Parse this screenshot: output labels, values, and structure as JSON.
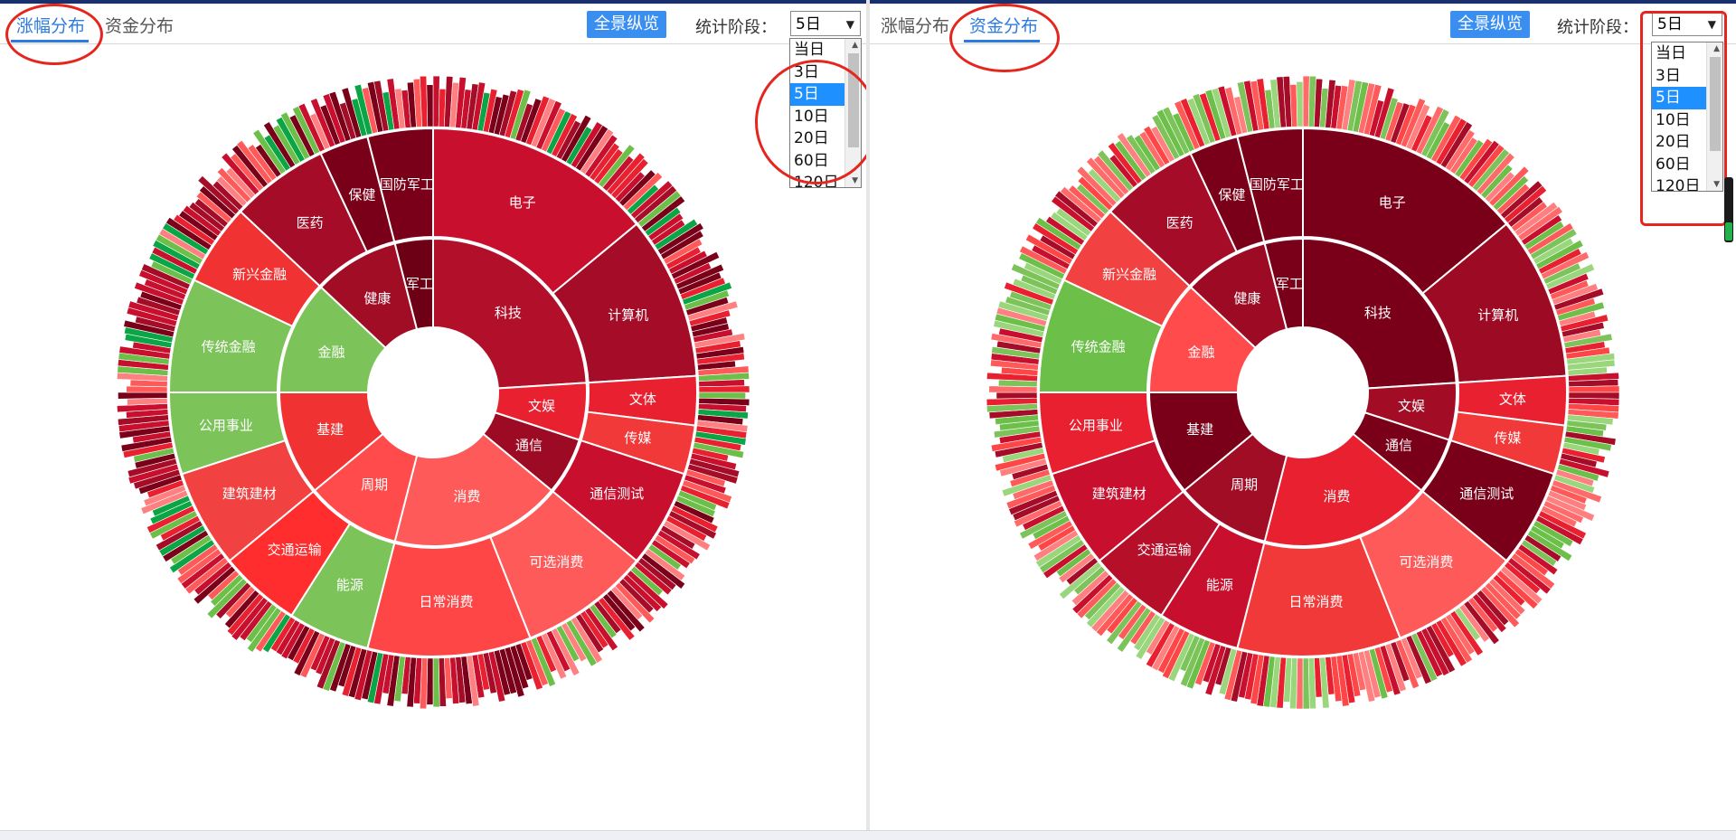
{
  "panels": [
    {
      "id": "left",
      "tabs": [
        {
          "label": "涨幅分布",
          "active": true
        },
        {
          "label": "资金分布",
          "active": false
        }
      ],
      "overview_button": "全景纵览",
      "stat_label": "统计阶段：",
      "select_value": "5日",
      "options": [
        "当日",
        "3日",
        "5日",
        "10日",
        "20日",
        "60日",
        "120日"
      ],
      "selected_index": 2
    },
    {
      "id": "right",
      "tabs": [
        {
          "label": "涨幅分布",
          "active": false
        },
        {
          "label": "资金分布",
          "active": true
        }
      ],
      "overview_button": "全景纵览",
      "stat_label": "统计阶段：",
      "select_value": "5日",
      "options": [
        "当日",
        "3日",
        "5日",
        "10日",
        "20日",
        "60日",
        "120日"
      ],
      "selected_index": 2
    }
  ],
  "colors": {
    "accent": "#2d7be0",
    "button": "#3a8ef0",
    "annotation": "#e5261e",
    "red_dark": "#7a0019",
    "red_mid": "#c8102e",
    "red": "#e8202f",
    "red_light": "#ff5a5a",
    "green": "#6cc04a",
    "green_dark": "#0aa544"
  },
  "chart_data": [
    {
      "type": "sunburst",
      "panel": "left",
      "title": "",
      "inner": [
        {
          "label": "科技",
          "weight": 24,
          "color": "#b2102a"
        },
        {
          "label": "文娱",
          "weight": 6,
          "color": "#e8202f"
        },
        {
          "label": "通信",
          "weight": 6,
          "color": "#9c0b23"
        },
        {
          "label": "消费",
          "weight": 18,
          "color": "#ff5a5a"
        },
        {
          "label": "周期",
          "weight": 10,
          "color": "#ff4b4b"
        },
        {
          "label": "基建",
          "weight": 11,
          "color": "#f03232"
        },
        {
          "label": "金融",
          "weight": 12,
          "color": "#7cc35a"
        },
        {
          "label": "健康",
          "weight": 9,
          "color": "#a00d25"
        },
        {
          "label": "军工",
          "weight": 4,
          "color": "#6e0016"
        }
      ],
      "middle": [
        {
          "label": "电子",
          "weight": 14,
          "color": "#c8102e"
        },
        {
          "label": "计算机",
          "weight": 10,
          "color": "#a50c27"
        },
        {
          "label": "文体",
          "weight": 3,
          "color": "#e82030"
        },
        {
          "label": "传媒",
          "weight": 3,
          "color": "#f23939"
        },
        {
          "label": "通信测试",
          "weight": 6,
          "color": "#c8102e"
        },
        {
          "label": "可选消费",
          "weight": 8,
          "color": "#ff5a5a"
        },
        {
          "label": "日常消费",
          "weight": 10,
          "color": "#ff4646"
        },
        {
          "label": "能源",
          "weight": 5,
          "color": "#7cc35a"
        },
        {
          "label": "交通运输",
          "weight": 5,
          "color": "#ff2d2d"
        },
        {
          "label": "建筑建材",
          "weight": 6,
          "color": "#f24141"
        },
        {
          "label": "公用事业",
          "weight": 5,
          "color": "#7cc35a"
        },
        {
          "label": "传统金融",
          "weight": 7,
          "color": "#7cc35a"
        },
        {
          "label": "新兴金融",
          "weight": 5,
          "color": "#f03232"
        },
        {
          "label": "医药",
          "weight": 6,
          "color": "#a50c27"
        },
        {
          "label": "保健",
          "weight": 3,
          "color": "#7a0019"
        },
        {
          "label": "国防军工",
          "weight": 4,
          "color": "#7a0019"
        }
      ]
    },
    {
      "type": "sunburst",
      "panel": "right",
      "title": "",
      "inner": [
        {
          "label": "科技",
          "weight": 24,
          "color": "#7a0019"
        },
        {
          "label": "文娱",
          "weight": 6,
          "color": "#a20c25"
        },
        {
          "label": "通信",
          "weight": 6,
          "color": "#7a0019"
        },
        {
          "label": "消费",
          "weight": 18,
          "color": "#e8202f"
        },
        {
          "label": "周期",
          "weight": 10,
          "color": "#a00d25"
        },
        {
          "label": "基建",
          "weight": 11,
          "color": "#7a0019"
        },
        {
          "label": "金融",
          "weight": 12,
          "color": "#ff4b4b"
        },
        {
          "label": "健康",
          "weight": 9,
          "color": "#9c0b23"
        },
        {
          "label": "军工",
          "weight": 4,
          "color": "#7a0019"
        }
      ],
      "middle": [
        {
          "label": "电子",
          "weight": 14,
          "color": "#7a0019"
        },
        {
          "label": "计算机",
          "weight": 10,
          "color": "#9c0b23"
        },
        {
          "label": "文体",
          "weight": 3,
          "color": "#e82030"
        },
        {
          "label": "传媒",
          "weight": 3,
          "color": "#f23939"
        },
        {
          "label": "通信测试",
          "weight": 6,
          "color": "#7a0019"
        },
        {
          "label": "可选消费",
          "weight": 8,
          "color": "#ff5a5a"
        },
        {
          "label": "日常消费",
          "weight": 10,
          "color": "#f23939"
        },
        {
          "label": "能源",
          "weight": 5,
          "color": "#c8102e"
        },
        {
          "label": "交通运输",
          "weight": 5,
          "color": "#b50f2a"
        },
        {
          "label": "建筑建材",
          "weight": 6,
          "color": "#c8102e"
        },
        {
          "label": "公用事业",
          "weight": 5,
          "color": "#e82030"
        },
        {
          "label": "传统金融",
          "weight": 7,
          "color": "#6cc04a"
        },
        {
          "label": "新兴金融",
          "weight": 5,
          "color": "#f24141"
        },
        {
          "label": "医药",
          "weight": 6,
          "color": "#a50c27"
        },
        {
          "label": "保健",
          "weight": 3,
          "color": "#7a0019"
        },
        {
          "label": "国防军工",
          "weight": 4,
          "color": "#7a0019"
        }
      ]
    }
  ]
}
